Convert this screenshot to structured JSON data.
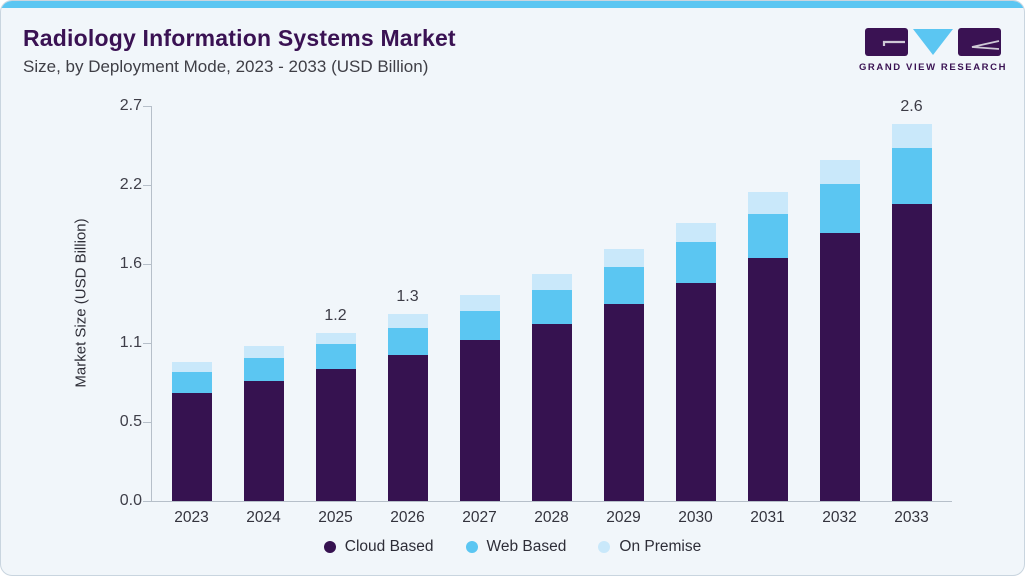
{
  "header": {
    "title": "Radiology Information Systems Market",
    "subtitle": "Size, by Deployment Mode, 2023 - 2033 (USD Billion)"
  },
  "logo": {
    "text": "GRAND VIEW RESEARCH",
    "purple": "#3A1253",
    "blue": "#5BC6F2"
  },
  "colors": {
    "card_background": "#F1F6FA",
    "top_strip": "#5BC6F2",
    "axis": "#B6BFC9",
    "title_text": "#3A1253"
  },
  "chart_data": {
    "type": "bar",
    "stacked": true,
    "title": "Radiology Information Systems Market Size, by Deployment Mode, 2023 - 2033 (USD Billion)",
    "xlabel": "",
    "ylabel": "Market Size (USD Billion)",
    "categories": [
      "2023",
      "2024",
      "2025",
      "2026",
      "2027",
      "2028",
      "2029",
      "2030",
      "2031",
      "2032",
      "2033"
    ],
    "series": [
      {
        "name": "Cloud Based",
        "color": "#361250",
        "values": [
          0.74,
          0.82,
          0.9,
          1.0,
          1.1,
          1.21,
          1.35,
          1.49,
          1.66,
          1.83,
          2.03
        ]
      },
      {
        "name": "Web Based",
        "color": "#5BC6F2",
        "values": [
          0.14,
          0.16,
          0.17,
          0.18,
          0.2,
          0.23,
          0.25,
          0.28,
          0.3,
          0.34,
          0.38
        ]
      },
      {
        "name": "On Premise",
        "color": "#C9E8FA",
        "values": [
          0.07,
          0.08,
          0.08,
          0.1,
          0.11,
          0.11,
          0.12,
          0.13,
          0.15,
          0.16,
          0.17
        ]
      }
    ],
    "bar_total_labels": {
      "2025": "1.2",
      "2026": "1.3",
      "2033": "2.6"
    },
    "y_ticks": [
      "0.0",
      "0.5",
      "1.1",
      "1.6",
      "2.2",
      "2.7"
    ],
    "ylim": [
      0,
      2.7
    ],
    "grid": false,
    "legend_position": "bottom"
  }
}
